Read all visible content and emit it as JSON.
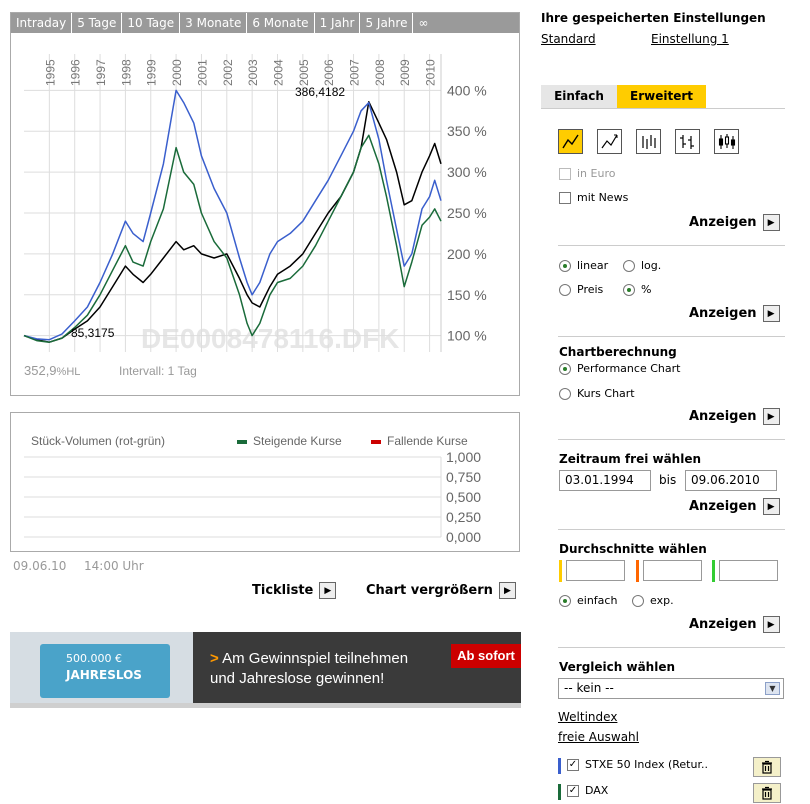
{
  "period_tabs": [
    "Intraday",
    "5 Tage",
    "10 Tage",
    "3 Monate",
    "6 Monate",
    "1 Jahr",
    "5 Jahre",
    "∞"
  ],
  "chart": {
    "watermark_text": "DE0008478116.DFK",
    "high_label": "386,4182",
    "low_label": "85,3175",
    "hl_value": "352,9",
    "hl_suffix": "%HL",
    "interval_label": "Intervall: 1 Tag",
    "colors": {
      "black": "#000000",
      "blue": "#3a5fcd",
      "green": "#1a6b3a",
      "grid": "#dddddd",
      "watermark": "#e6e6e6"
    }
  },
  "chart_data": {
    "type": "line",
    "x_tick_labels": [
      "1995",
      "1996",
      "1997",
      "1998",
      "1999",
      "2000",
      "2001",
      "2002",
      "2003",
      "2004",
      "2005",
      "2006",
      "2007",
      "2008",
      "2009",
      "2010"
    ],
    "y_tick_labels": [
      "100 %",
      "150 %",
      "200 %",
      "250 %",
      "300 %",
      "350 %",
      "400 %"
    ],
    "y_ticks": [
      100,
      150,
      200,
      250,
      300,
      350,
      400
    ],
    "x_range": [
      1994.0,
      2010.45
    ],
    "y_range": [
      80,
      420
    ],
    "series": [
      {
        "color": "black",
        "points": [
          [
            1994.0,
            100
          ],
          [
            1994.5,
            95
          ],
          [
            1995.0,
            92
          ],
          [
            1995.5,
            97
          ],
          [
            1996.0,
            108
          ],
          [
            1996.5,
            118
          ],
          [
            1997.0,
            135
          ],
          [
            1997.5,
            160
          ],
          [
            1998.0,
            185
          ],
          [
            1998.3,
            175
          ],
          [
            1998.7,
            165
          ],
          [
            1999.0,
            175
          ],
          [
            1999.5,
            195
          ],
          [
            2000.0,
            215
          ],
          [
            2000.3,
            205
          ],
          [
            2000.7,
            210
          ],
          [
            2001.0,
            200
          ],
          [
            2001.5,
            195
          ],
          [
            2002.0,
            200
          ],
          [
            2002.5,
            170
          ],
          [
            2002.8,
            150
          ],
          [
            2003.0,
            140
          ],
          [
            2003.3,
            135
          ],
          [
            2003.7,
            160
          ],
          [
            2004.0,
            175
          ],
          [
            2004.5,
            185
          ],
          [
            2005.0,
            200
          ],
          [
            2005.5,
            225
          ],
          [
            2006.0,
            250
          ],
          [
            2006.5,
            270
          ],
          [
            2007.0,
            300
          ],
          [
            2007.3,
            330
          ],
          [
            2007.6,
            386
          ],
          [
            2008.0,
            360
          ],
          [
            2008.3,
            340
          ],
          [
            2008.7,
            300
          ],
          [
            2009.0,
            260
          ],
          [
            2009.3,
            265
          ],
          [
            2009.7,
            300
          ],
          [
            2010.0,
            320
          ],
          [
            2010.2,
            335
          ],
          [
            2010.45,
            310
          ]
        ]
      },
      {
        "color": "blue",
        "points": [
          [
            1994.0,
            100
          ],
          [
            1994.5,
            96
          ],
          [
            1995.0,
            95
          ],
          [
            1995.5,
            102
          ],
          [
            1996.0,
            118
          ],
          [
            1996.5,
            135
          ],
          [
            1997.0,
            165
          ],
          [
            1997.5,
            200
          ],
          [
            1998.0,
            240
          ],
          [
            1998.3,
            225
          ],
          [
            1998.7,
            215
          ],
          [
            1999.0,
            250
          ],
          [
            1999.5,
            310
          ],
          [
            2000.0,
            400
          ],
          [
            2000.3,
            385
          ],
          [
            2000.7,
            360
          ],
          [
            2001.0,
            320
          ],
          [
            2001.5,
            280
          ],
          [
            2002.0,
            250
          ],
          [
            2002.5,
            195
          ],
          [
            2002.8,
            165
          ],
          [
            2003.0,
            150
          ],
          [
            2003.3,
            165
          ],
          [
            2003.7,
            200
          ],
          [
            2004.0,
            215
          ],
          [
            2004.5,
            225
          ],
          [
            2005.0,
            240
          ],
          [
            2005.5,
            265
          ],
          [
            2006.0,
            290
          ],
          [
            2006.5,
            320
          ],
          [
            2007.0,
            350
          ],
          [
            2007.3,
            375
          ],
          [
            2007.6,
            385
          ],
          [
            2008.0,
            340
          ],
          [
            2008.3,
            290
          ],
          [
            2008.7,
            230
          ],
          [
            2009.0,
            185
          ],
          [
            2009.3,
            200
          ],
          [
            2009.7,
            255
          ],
          [
            2010.0,
            270
          ],
          [
            2010.2,
            290
          ],
          [
            2010.45,
            265
          ]
        ]
      },
      {
        "color": "green",
        "points": [
          [
            1994.0,
            100
          ],
          [
            1994.5,
            94
          ],
          [
            1995.0,
            92
          ],
          [
            1995.5,
            97
          ],
          [
            1996.0,
            110
          ],
          [
            1996.5,
            125
          ],
          [
            1997.0,
            150
          ],
          [
            1997.5,
            180
          ],
          [
            1998.0,
            210
          ],
          [
            1998.3,
            190
          ],
          [
            1998.7,
            185
          ],
          [
            1999.0,
            215
          ],
          [
            1999.5,
            255
          ],
          [
            2000.0,
            330
          ],
          [
            2000.3,
            300
          ],
          [
            2000.7,
            285
          ],
          [
            2001.0,
            250
          ],
          [
            2001.5,
            215
          ],
          [
            2002.0,
            195
          ],
          [
            2002.5,
            150
          ],
          [
            2002.8,
            115
          ],
          [
            2003.0,
            100
          ],
          [
            2003.3,
            115
          ],
          [
            2003.7,
            150
          ],
          [
            2004.0,
            165
          ],
          [
            2004.5,
            170
          ],
          [
            2005.0,
            185
          ],
          [
            2005.5,
            210
          ],
          [
            2006.0,
            240
          ],
          [
            2006.5,
            270
          ],
          [
            2007.0,
            300
          ],
          [
            2007.3,
            330
          ],
          [
            2007.6,
            345
          ],
          [
            2008.0,
            310
          ],
          [
            2008.3,
            270
          ],
          [
            2008.7,
            210
          ],
          [
            2009.0,
            160
          ],
          [
            2009.3,
            190
          ],
          [
            2009.7,
            235
          ],
          [
            2010.0,
            245
          ],
          [
            2010.2,
            255
          ],
          [
            2010.45,
            240
          ]
        ]
      }
    ]
  },
  "volume": {
    "title": "Stück-Volumen (rot-grün)",
    "legend_up": "Steigende Kurse",
    "legend_down": "Fallende Kurse",
    "up_color": "#1a6b3a",
    "down_color": "#cc0000",
    "y_tick_labels": [
      "1,000",
      "0,750",
      "0,500",
      "0,250",
      "0,000"
    ]
  },
  "below_chart": {
    "date": "09.06.10",
    "time": "14:00 Uhr",
    "tickliste": "Tickliste",
    "chart_vergroessern": "Chart vergrößern"
  },
  "ad": {
    "card_line1": "500.000 €",
    "card_line2": "JAHRESLOS",
    "headline_prefix": ">",
    "headline_line1": "Am Gewinnspiel teilnehmen",
    "headline_line2": "und Jahreslose gewinnen!",
    "cta": "Ab sofort"
  },
  "settings": {
    "title": "Ihre gespeicherten Einstellungen",
    "link1": "Standard",
    "link2": "Einstellung 1"
  },
  "mode_tabs": {
    "simple": "Einfach",
    "advanced": "Erweitert"
  },
  "chart_types": [
    "line-chart-icon",
    "mountain-chart-icon",
    "ohlc-chart-icon",
    "hlc-chart-icon",
    "candlestick-chart-icon"
  ],
  "options": {
    "in_euro": "in Euro",
    "mit_news": "mit News"
  },
  "show_label": "Anzeigen",
  "scale": {
    "linear": "linear",
    "log": "log.",
    "preis": "Preis",
    "percent": "%"
  },
  "calc": {
    "title": "Chartberechnung",
    "performance": "Performance Chart",
    "kurs": "Kurs Chart"
  },
  "period": {
    "title": "Zeitraum frei wählen",
    "from": "03.01.1994",
    "bis": "bis",
    "to": "09.06.2010"
  },
  "averages": {
    "title": "Durchschnitte wählen",
    "colors": [
      "#ffcc00",
      "#ff6600",
      "#33cc33"
    ],
    "einfach": "einfach",
    "exp": "exp."
  },
  "compare": {
    "title": "Vergleich wählen",
    "select_value": "-- kein --",
    "weltindex": "Weltindex",
    "freie_auswahl": "freie Auswahl",
    "items": [
      {
        "label": "STXE 50 Index (Retur..",
        "color": "#3a5fcd"
      },
      {
        "label": "DAX",
        "color": "#1a6b3a"
      }
    ]
  }
}
